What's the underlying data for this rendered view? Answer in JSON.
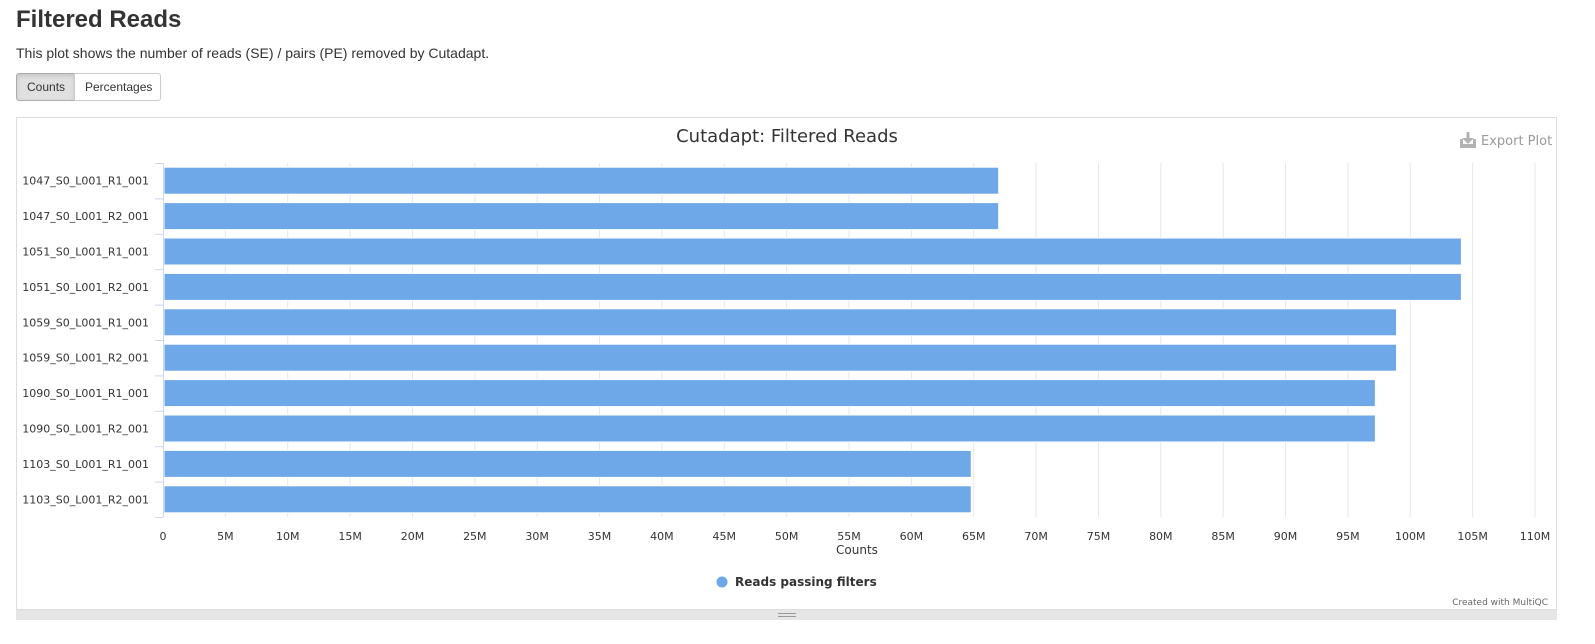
{
  "section": {
    "heading": "Filtered Reads",
    "description": "This plot shows the number of reads (SE) / pairs (PE) removed by Cutadapt."
  },
  "toggle": {
    "counts_label": "Counts",
    "percentages_label": "Percentages",
    "selected": "Counts"
  },
  "plot": {
    "export_label": "Export Plot",
    "credit": "Created with MultiQC"
  },
  "colors": {
    "bar": "#6fa8e8",
    "grid": "#e6e6e6",
    "axis_text": "#333333"
  },
  "chart_data": {
    "type": "bar",
    "orientation": "horizontal",
    "title": "Cutadapt: Filtered Reads",
    "xlabel": "Counts",
    "ylabel": "",
    "xlim": [
      0,
      110000000
    ],
    "x_ticks": [
      "0",
      "5M",
      "10M",
      "15M",
      "20M",
      "25M",
      "30M",
      "35M",
      "40M",
      "45M",
      "50M",
      "55M",
      "60M",
      "65M",
      "70M",
      "75M",
      "80M",
      "85M",
      "90M",
      "95M",
      "100M",
      "105M",
      "110M"
    ],
    "grid": true,
    "legend_position": "bottom-center",
    "categories": [
      "1047_S0_L001_R1_001",
      "1047_S0_L001_R2_001",
      "1051_S0_L001_R1_001",
      "1051_S0_L001_R2_001",
      "1059_S0_L001_R1_001",
      "1059_S0_L001_R2_001",
      "1090_S0_L001_R1_001",
      "1090_S0_L001_R2_001",
      "1103_S0_L001_R1_001",
      "1103_S0_L001_R2_001"
    ],
    "series": [
      {
        "name": "Reads passing filters",
        "values": [
          67000000,
          67000000,
          104100000,
          104100000,
          98900000,
          98900000,
          97200000,
          97200000,
          64800000,
          64800000
        ]
      }
    ]
  }
}
